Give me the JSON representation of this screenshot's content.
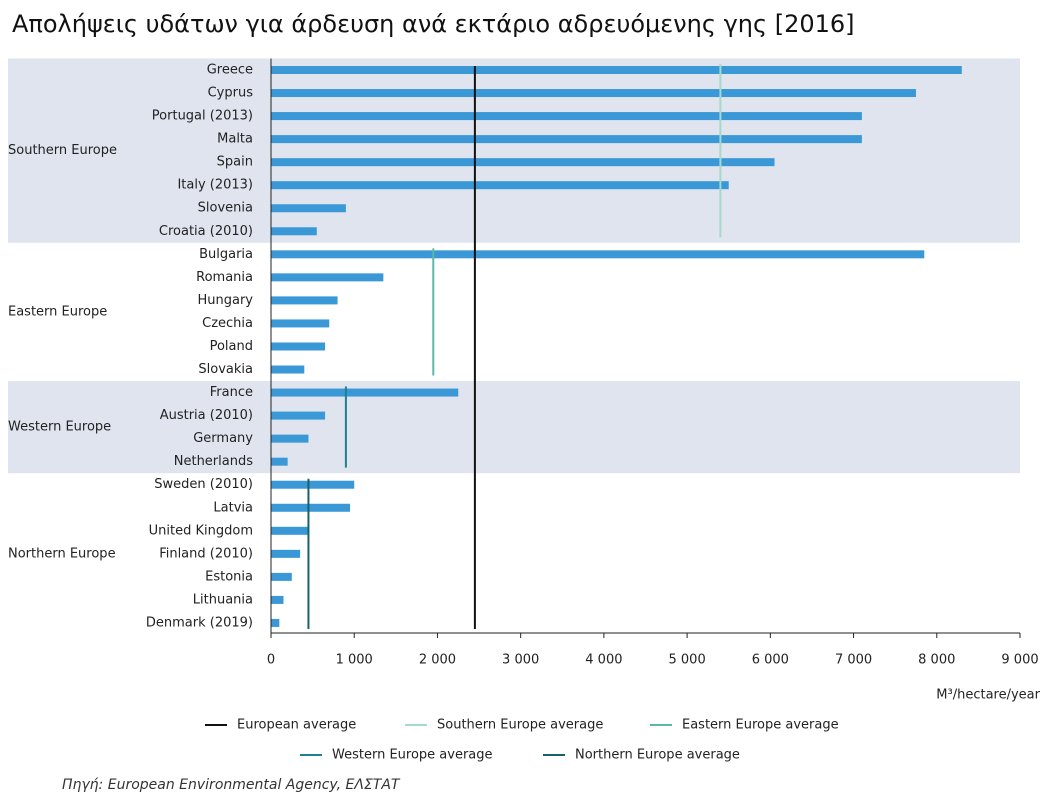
{
  "chart_data": {
    "type": "bar",
    "orientation": "horizontal",
    "title": "Απολήψεις υδάτων για άρδευση ανά εκτάριο αδρευόμενης γης [2016]",
    "xlabel": "M³/hectare/year",
    "bar_color": "#3a98d6",
    "band_color": "#dfe4ef",
    "groups": [
      {
        "name": "Southern Europe",
        "shaded": true,
        "categories": [
          "Greece",
          "Cyprus",
          "Portugal (2013)",
          "Malta",
          "Spain",
          "Italy (2013)",
          "Slovenia",
          "Croatia (2010)"
        ],
        "values": [
          8300,
          7750,
          7100,
          7100,
          6050,
          5500,
          900,
          550
        ]
      },
      {
        "name": "Eastern Europe",
        "shaded": false,
        "categories": [
          "Bulgaria",
          "Romania",
          "Hungary",
          "Czechia",
          "Poland",
          "Slovakia"
        ],
        "values": [
          7850,
          1350,
          800,
          700,
          650,
          400
        ]
      },
      {
        "name": "Western Europe",
        "shaded": true,
        "categories": [
          "France",
          "Austria (2010)",
          "Germany",
          "Netherlands"
        ],
        "values": [
          2250,
          650,
          450,
          200
        ]
      },
      {
        "name": "Northern Europe",
        "shaded": false,
        "categories": [
          "Sweden (2010)",
          "Latvia",
          "United Kingdom",
          "Finland (2010)",
          "Estonia",
          "Lithuania",
          "Denmark (2019)"
        ],
        "values": [
          1000,
          950,
          450,
          350,
          250,
          150,
          100
        ]
      }
    ],
    "averages": [
      {
        "name": "European average",
        "color": "#111111",
        "value": 2450
      },
      {
        "name": "Southern Europe average",
        "color": "#a6d8cc",
        "value": 5400,
        "group": "Southern Europe"
      },
      {
        "name": "Eastern Europe average",
        "color": "#5cb8a6",
        "value": 1950,
        "group": "Eastern Europe"
      },
      {
        "name": "Western Europe average",
        "color": "#1f8090",
        "value": 900,
        "group": "Western Europe"
      },
      {
        "name": "Northern Europe average",
        "color": "#17606e",
        "value": 450,
        "group": "Northern Europe"
      }
    ],
    "xlim": [
      0,
      9000
    ],
    "xticks": [
      0,
      {
        "value": 1000,
        "label": "1 000"
      },
      {
        "value": 2000,
        "label": "2 000"
      },
      {
        "value": 3000,
        "label": "3 000"
      },
      {
        "value": 4000,
        "label": "4 000"
      },
      {
        "value": 5000,
        "label": "5 000"
      },
      {
        "value": 6000,
        "label": "6 000"
      },
      {
        "value": 7000,
        "label": "7 000"
      },
      {
        "value": 8000,
        "label": "8 000"
      },
      {
        "value": 9000,
        "label": "9 000"
      }
    ]
  },
  "source": "Πηγή: European Environmental Agency, ΕΛΣΤΑΤ"
}
